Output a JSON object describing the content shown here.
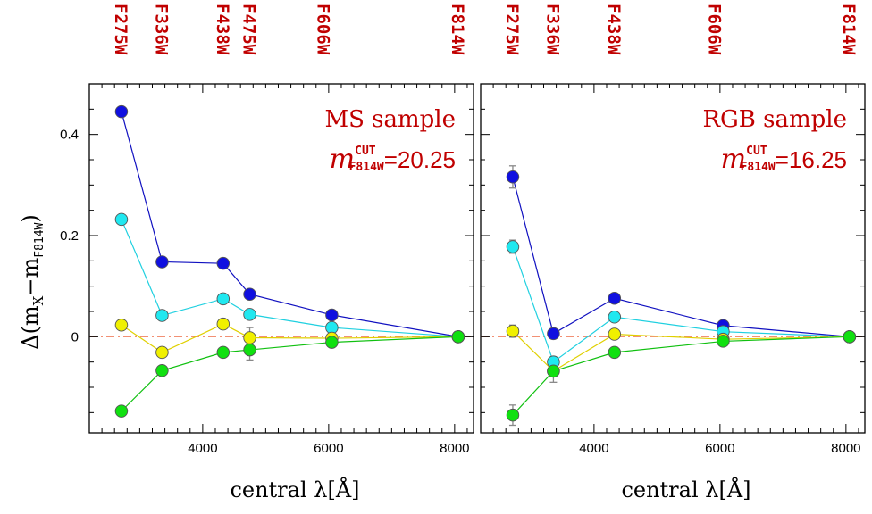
{
  "chart_data": [
    {
      "type": "line",
      "annotation_title": "MS sample",
      "annotation_cut": {
        "symbol": "m",
        "sup": "CUT",
        "sub": "F814W",
        "value": "=20.25"
      },
      "xlabel": "central λ[Å]",
      "ylabel": {
        "main": "Δ(m",
        "sub1": "X",
        "mid": "−m",
        "sub2": "F814W",
        "close": ")"
      },
      "xlim": [
        2200,
        8300
      ],
      "ylim": [
        -0.19,
        0.5
      ],
      "x_ticks": [
        4000,
        6000,
        8000
      ],
      "y_ticks": [
        {
          "v": 0.4,
          "label": "0.4"
        },
        {
          "v": 0.2,
          "label": "0.2"
        },
        {
          "v": 0,
          "label": "0"
        }
      ],
      "filters": [
        {
          "name": "F275W",
          "x": 2710
        },
        {
          "name": "F336W",
          "x": 3355
        },
        {
          "name": "F438W",
          "x": 4325
        },
        {
          "name": "F475W",
          "x": 4747
        },
        {
          "name": "F606W",
          "x": 5922
        },
        {
          "name": "F814W",
          "x": 8057
        }
      ],
      "series": [
        {
          "color": "#1010e0",
          "line": "#1010c0",
          "x": [
            2710,
            3355,
            4325,
            4747,
            6050,
            8057
          ],
          "y": [
            0.445,
            0.148,
            0.145,
            0.084,
            0.043,
            0.0
          ],
          "err": [
            0.004,
            0.004,
            0.004,
            0.004,
            0.004,
            0
          ]
        },
        {
          "color": "#20e8f0",
          "line": "#20d0e0",
          "x": [
            2710,
            3355,
            4325,
            4747,
            6050,
            8057
          ],
          "y": [
            0.232,
            0.042,
            0.075,
            0.044,
            0.018,
            0.0
          ],
          "err": [
            0.004,
            0.004,
            0.004,
            0.004,
            0.004,
            0
          ]
        },
        {
          "color": "#f0f000",
          "line": "#e0d000",
          "x": [
            2710,
            3355,
            4325,
            4747,
            6050,
            8057
          ],
          "y": [
            0.023,
            -0.031,
            0.025,
            -0.002,
            -0.003,
            0.0
          ],
          "err": [
            0.004,
            0.004,
            0.004,
            0.02,
            0.004,
            0
          ]
        },
        {
          "color": "#10e010",
          "line": "#10c010",
          "x": [
            2710,
            3355,
            4325,
            4747,
            6050,
            8057
          ],
          "y": [
            -0.147,
            -0.067,
            -0.031,
            -0.026,
            -0.011,
            0.0
          ],
          "err": [
            0.004,
            0.004,
            0.004,
            0.02,
            0.004,
            0
          ]
        }
      ]
    },
    {
      "type": "line",
      "annotation_title": "RGB sample",
      "annotation_cut": {
        "symbol": "m",
        "sup": "CUT",
        "sub": "F814W",
        "value": "=16.25"
      },
      "xlabel": "central λ[Å]",
      "xlim": [
        2200,
        8300
      ],
      "ylim": [
        -0.19,
        0.5
      ],
      "x_ticks": [
        4000,
        6000,
        8000
      ],
      "filters": [
        {
          "name": "F275W",
          "x": 2710
        },
        {
          "name": "F336W",
          "x": 3355
        },
        {
          "name": "F438W",
          "x": 4325
        },
        {
          "name": "F606W",
          "x": 5922
        },
        {
          "name": "F814W",
          "x": 8057
        }
      ],
      "series": [
        {
          "color": "#1010e0",
          "line": "#1010c0",
          "x": [
            2710,
            3355,
            4325,
            6050,
            8057
          ],
          "y": [
            0.316,
            0.006,
            0.076,
            0.022,
            0.0
          ],
          "err": [
            0.022,
            0.004,
            0.004,
            0.004,
            0
          ]
        },
        {
          "color": "#20e8f0",
          "line": "#20d0e0",
          "x": [
            2710,
            3355,
            4325,
            6050,
            8057
          ],
          "y": [
            0.178,
            -0.05,
            0.039,
            0.01,
            0.0
          ],
          "err": [
            0.013,
            0.01,
            0.008,
            0.004,
            0
          ]
        },
        {
          "color": "#f0f000",
          "line": "#e0d000",
          "x": [
            2710,
            3355,
            4325,
            6050,
            8057
          ],
          "y": [
            0.011,
            -0.068,
            0.005,
            -0.005,
            0.0
          ],
          "err": [
            0.012,
            0.006,
            0.004,
            0.004,
            0
          ]
        },
        {
          "color": "#10e010",
          "line": "#10c010",
          "x": [
            2710,
            3355,
            4325,
            6050,
            8057
          ],
          "y": [
            -0.155,
            -0.068,
            -0.031,
            -0.009,
            0.0
          ],
          "err": [
            0.02,
            0.022,
            0.01,
            0.004,
            0
          ]
        }
      ]
    }
  ]
}
